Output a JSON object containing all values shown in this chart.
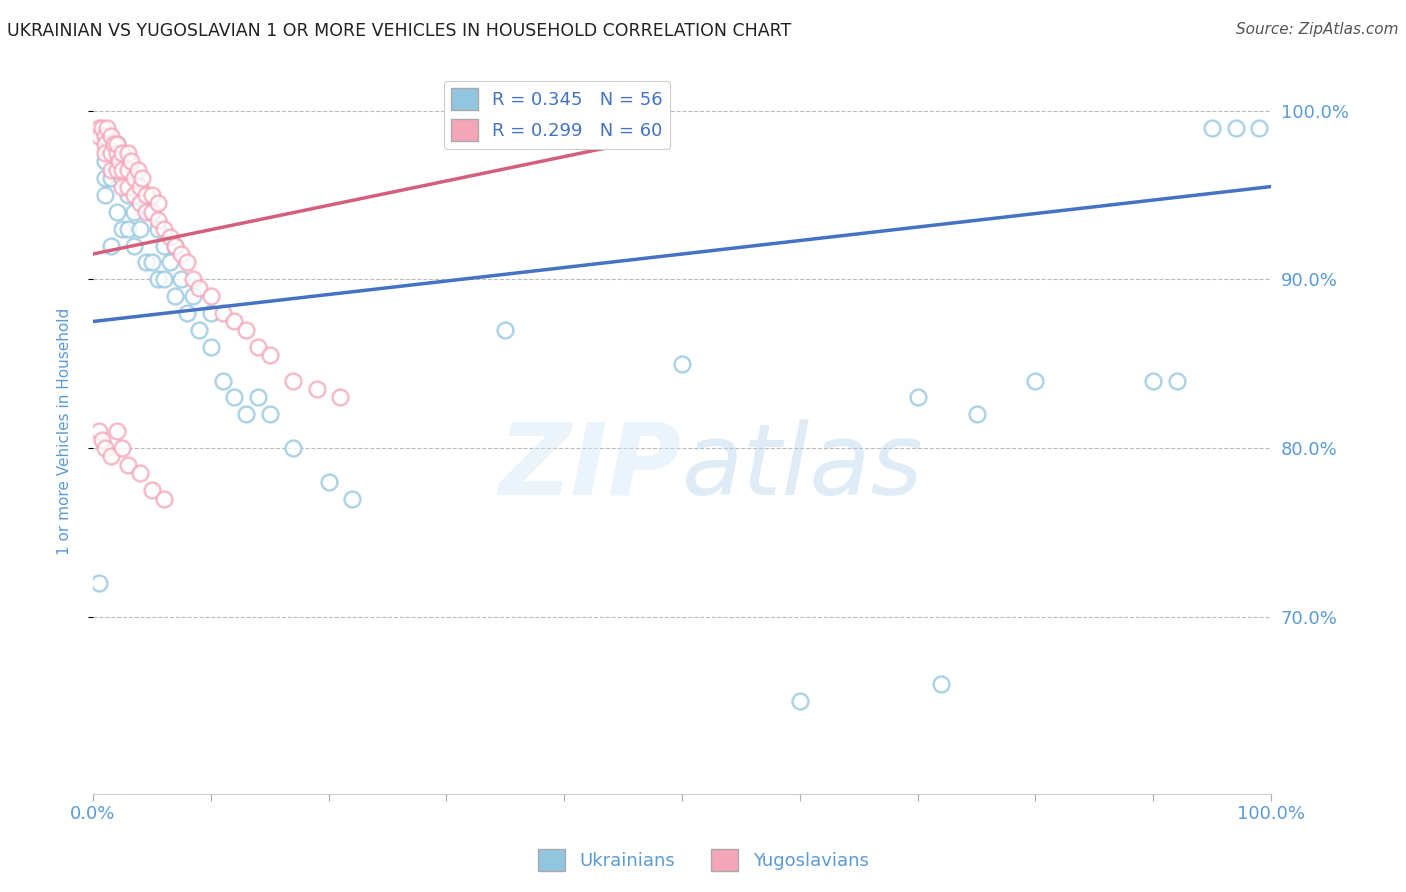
{
  "title": "UKRAINIAN VS YUGOSLAVIAN 1 OR MORE VEHICLES IN HOUSEHOLD CORRELATION CHART",
  "source": "Source: ZipAtlas.com",
  "ylabel": "1 or more Vehicles in Household",
  "watermark": "ZIPatlas",
  "xlim": [
    0.0,
    1.0
  ],
  "ylim": [
    0.595,
    1.025
  ],
  "yticks": [
    0.7,
    0.8,
    0.9,
    1.0
  ],
  "ytick_labels": [
    "70.0%",
    "80.0%",
    "90.0%",
    "100.0%"
  ],
  "legend1_label": "R = 0.345   N = 56",
  "legend2_label": "R = 0.299   N = 60",
  "blue_color": "#92c5de",
  "pink_color": "#f4a5b8",
  "line_blue": "#4472c4",
  "line_pink": "#d45f7a",
  "title_color": "#222222",
  "axis_label_color": "#5b9bd5",
  "grid_color": "#bbbbbb",
  "background_color": "#ffffff",
  "ukrainians_x": [
    0.005,
    0.01,
    0.01,
    0.01,
    0.015,
    0.015,
    0.02,
    0.02,
    0.02,
    0.025,
    0.025,
    0.03,
    0.03,
    0.03,
    0.035,
    0.035,
    0.035,
    0.04,
    0.04,
    0.045,
    0.045,
    0.05,
    0.05,
    0.055,
    0.055,
    0.06,
    0.06,
    0.065,
    0.07,
    0.07,
    0.075,
    0.08,
    0.085,
    0.09,
    0.1,
    0.1,
    0.11,
    0.12,
    0.13,
    0.14,
    0.15,
    0.17,
    0.2,
    0.22,
    0.35,
    0.5,
    0.6,
    0.7,
    0.72,
    0.75,
    0.8,
    0.9,
    0.92,
    0.95,
    0.97,
    0.99
  ],
  "ukrainians_y": [
    0.72,
    0.95,
    0.96,
    0.97,
    0.92,
    0.96,
    0.94,
    0.97,
    0.98,
    0.93,
    0.96,
    0.93,
    0.95,
    0.97,
    0.92,
    0.94,
    0.96,
    0.93,
    0.95,
    0.91,
    0.95,
    0.91,
    0.94,
    0.9,
    0.93,
    0.9,
    0.92,
    0.91,
    0.89,
    0.92,
    0.9,
    0.88,
    0.89,
    0.87,
    0.86,
    0.88,
    0.84,
    0.83,
    0.82,
    0.83,
    0.82,
    0.8,
    0.78,
    0.77,
    0.87,
    0.85,
    0.65,
    0.83,
    0.66,
    0.82,
    0.84,
    0.84,
    0.84,
    0.99,
    0.99,
    0.99
  ],
  "yugoslavians_x": [
    0.005,
    0.005,
    0.008,
    0.01,
    0.01,
    0.01,
    0.012,
    0.015,
    0.015,
    0.015,
    0.018,
    0.02,
    0.02,
    0.02,
    0.022,
    0.025,
    0.025,
    0.025,
    0.03,
    0.03,
    0.03,
    0.032,
    0.035,
    0.035,
    0.038,
    0.04,
    0.04,
    0.042,
    0.045,
    0.045,
    0.05,
    0.05,
    0.055,
    0.055,
    0.06,
    0.065,
    0.07,
    0.075,
    0.08,
    0.085,
    0.09,
    0.1,
    0.11,
    0.12,
    0.13,
    0.14,
    0.15,
    0.17,
    0.19,
    0.21,
    0.005,
    0.008,
    0.01,
    0.015,
    0.02,
    0.025,
    0.03,
    0.04,
    0.05,
    0.06
  ],
  "yugoslavians_y": [
    0.99,
    0.985,
    0.99,
    0.985,
    0.98,
    0.975,
    0.99,
    0.985,
    0.975,
    0.965,
    0.98,
    0.975,
    0.965,
    0.98,
    0.97,
    0.975,
    0.965,
    0.955,
    0.965,
    0.975,
    0.955,
    0.97,
    0.96,
    0.95,
    0.965,
    0.955,
    0.945,
    0.96,
    0.95,
    0.94,
    0.95,
    0.94,
    0.945,
    0.935,
    0.93,
    0.925,
    0.92,
    0.915,
    0.91,
    0.9,
    0.895,
    0.89,
    0.88,
    0.875,
    0.87,
    0.86,
    0.855,
    0.84,
    0.835,
    0.83,
    0.81,
    0.805,
    0.8,
    0.795,
    0.81,
    0.8,
    0.79,
    0.785,
    0.775,
    0.77
  ]
}
